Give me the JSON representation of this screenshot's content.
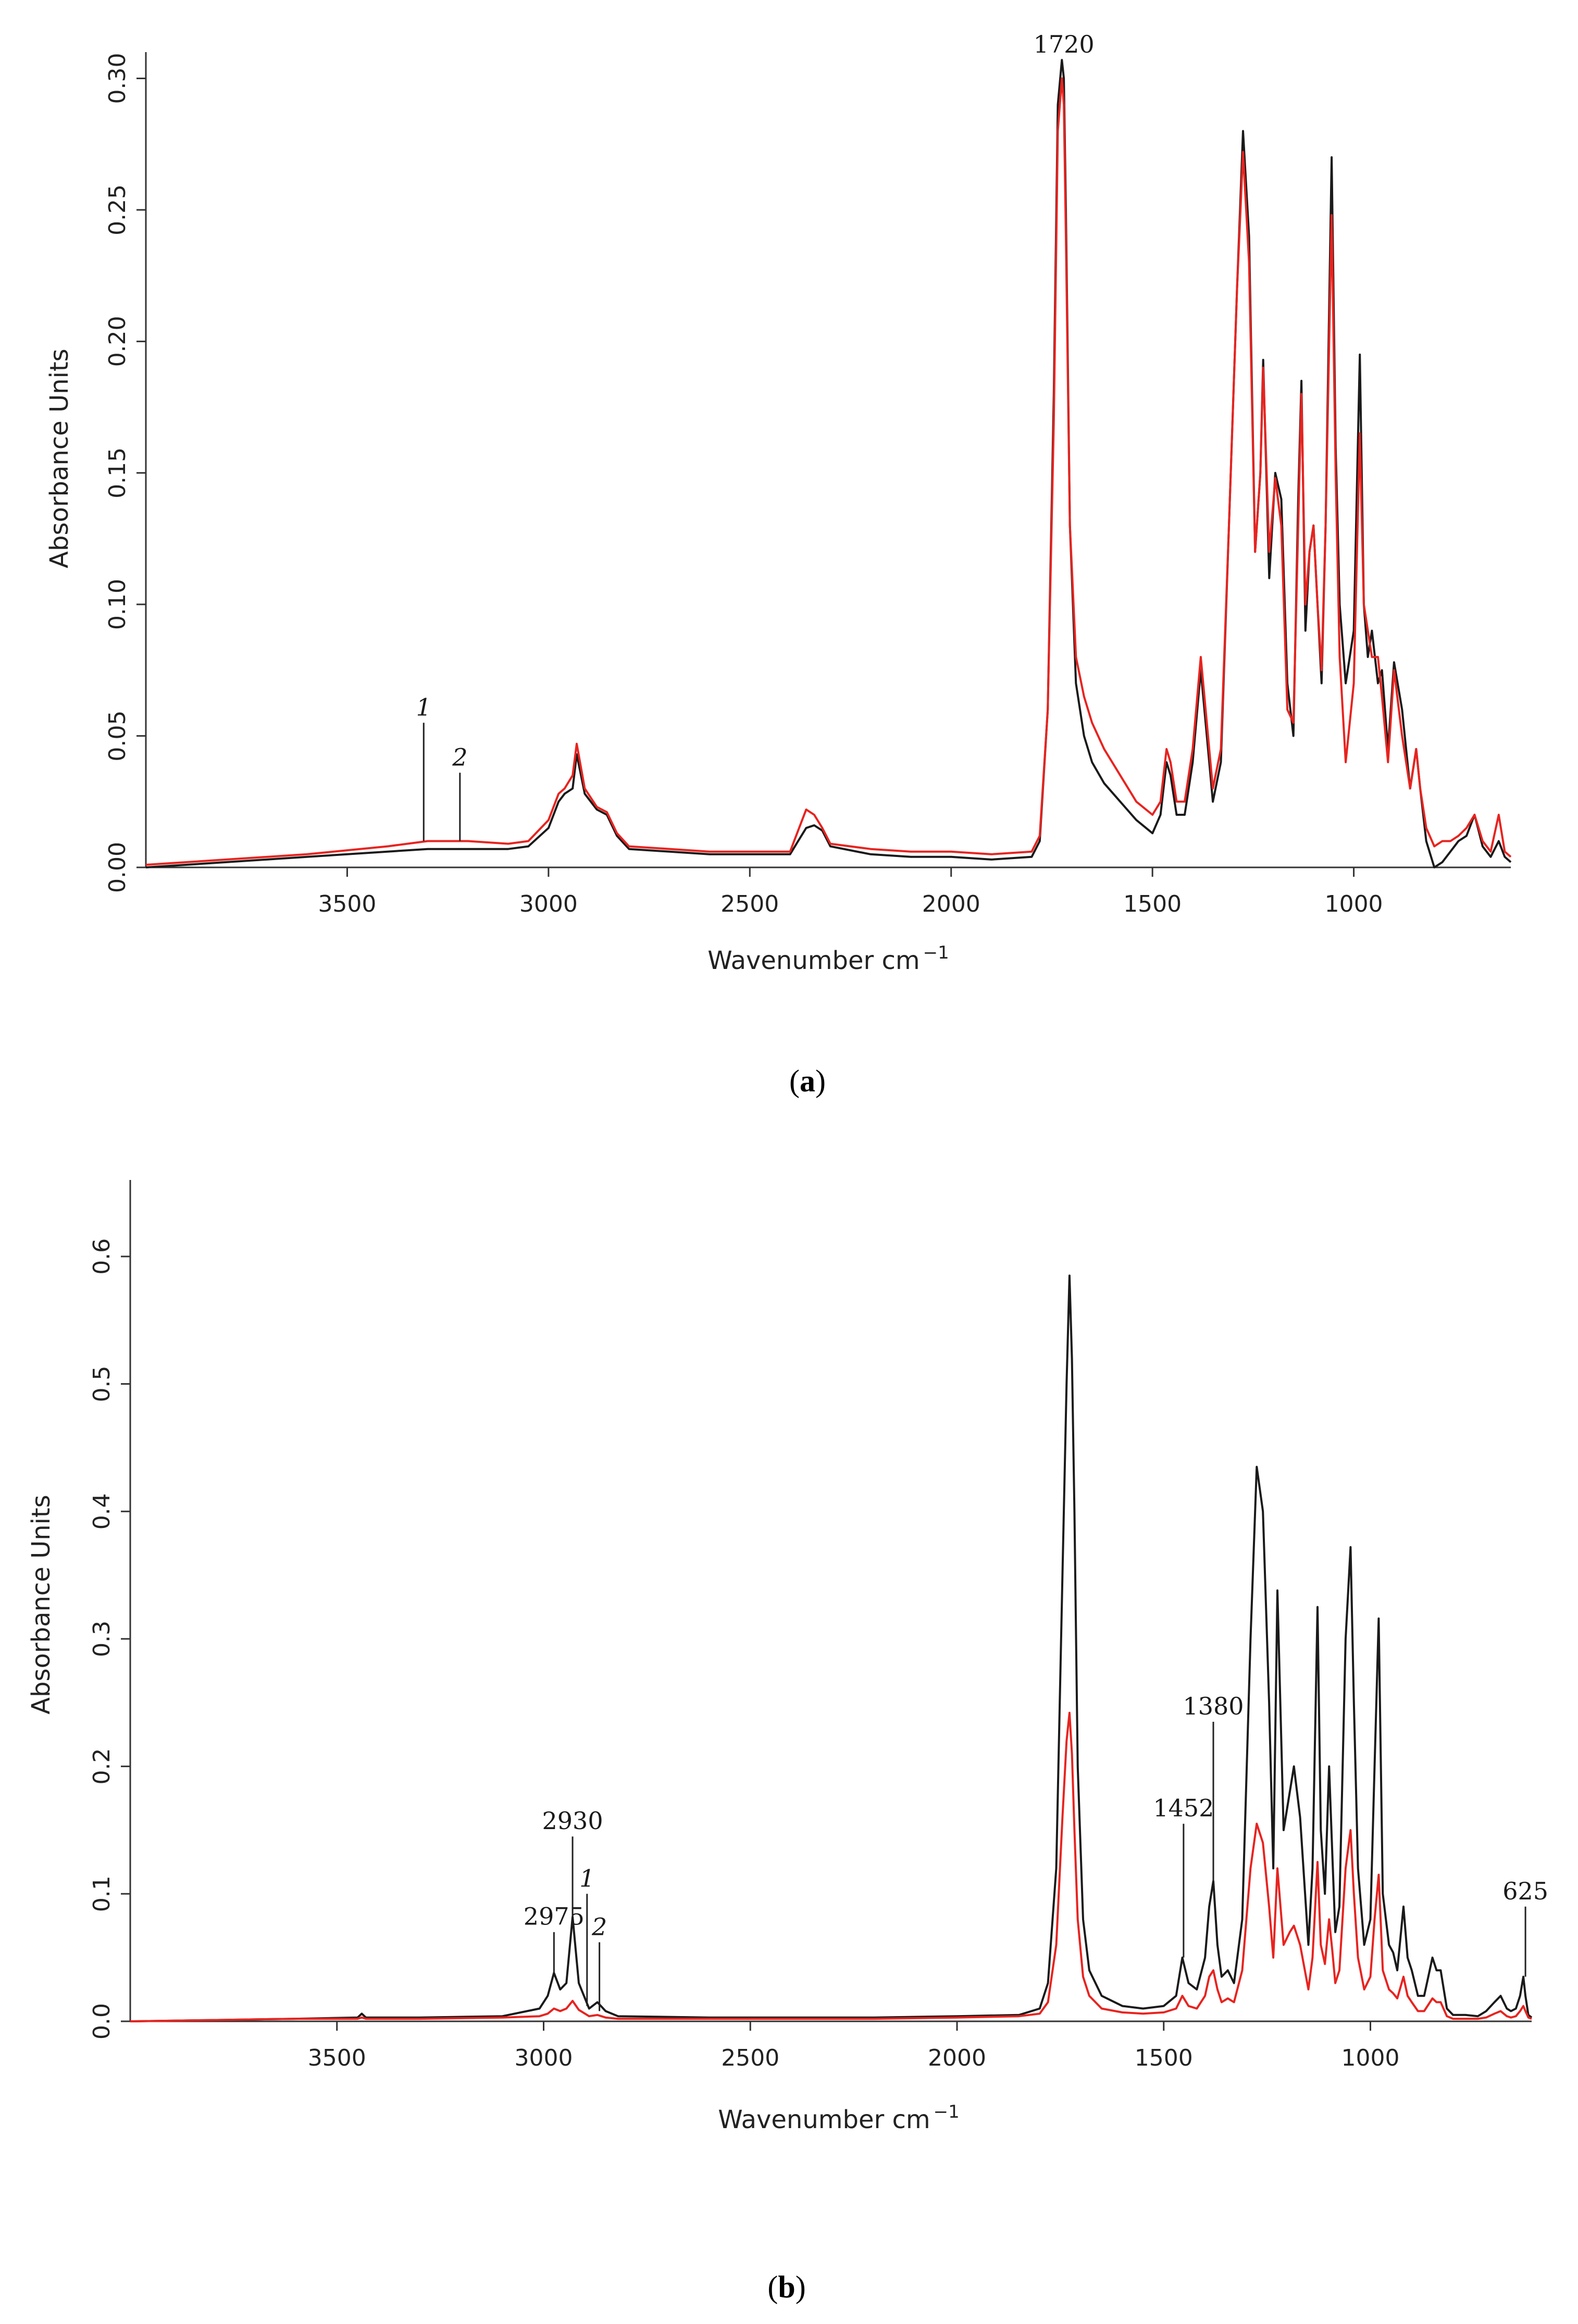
{
  "chart_data": [
    {
      "panel": "a",
      "label_open": "(",
      "label_letter": "a",
      "label_close": ")",
      "type": "line",
      "xlabel": "Wavenumber cm",
      "xlabel_sup": "−1",
      "ylabel": "Absorbance Units",
      "xlim": [
        4000,
        610
      ],
      "ylim": [
        0,
        0.31
      ],
      "x_ticks": [
        3500,
        3000,
        2500,
        2000,
        1500,
        1000
      ],
      "y_ticks": [
        0.0,
        0.05,
        0.1,
        0.15,
        0.2,
        0.25,
        0.3
      ],
      "y_tick_labels": [
        "0.00",
        "0.05",
        "0.10",
        "0.15",
        "0.20",
        "0.25",
        "0.30"
      ],
      "series": [
        {
          "name": "1",
          "color": "#1a1a1a",
          "x": [
            4000,
            3800,
            3600,
            3400,
            3300,
            3200,
            3100,
            3050,
            3000,
            2975,
            2960,
            2940,
            2930,
            2910,
            2880,
            2855,
            2830,
            2800,
            2600,
            2400,
            2380,
            2360,
            2340,
            2320,
            2300,
            2200,
            2100,
            2000,
            1900,
            1800,
            1780,
            1760,
            1745,
            1735,
            1725,
            1720,
            1715,
            1705,
            1690,
            1670,
            1650,
            1620,
            1580,
            1540,
            1500,
            1480,
            1465,
            1455,
            1440,
            1420,
            1400,
            1380,
            1365,
            1350,
            1330,
            1310,
            1290,
            1275,
            1260,
            1245,
            1232,
            1225,
            1210,
            1195,
            1180,
            1165,
            1150,
            1138,
            1130,
            1120,
            1110,
            1100,
            1090,
            1080,
            1070,
            1055,
            1045,
            1035,
            1020,
            1000,
            985,
            975,
            965,
            955,
            940,
            930,
            915,
            900,
            880,
            860,
            845,
            835,
            820,
            800,
            780,
            760,
            740,
            720,
            700,
            680,
            660,
            640,
            625,
            610
          ],
          "values": [
            0.0,
            0.002,
            0.004,
            0.006,
            0.007,
            0.007,
            0.007,
            0.008,
            0.015,
            0.025,
            0.028,
            0.03,
            0.043,
            0.028,
            0.022,
            0.02,
            0.012,
            0.007,
            0.005,
            0.005,
            0.01,
            0.015,
            0.016,
            0.014,
            0.008,
            0.005,
            0.004,
            0.004,
            0.003,
            0.004,
            0.01,
            0.06,
            0.18,
            0.29,
            0.307,
            0.3,
            0.25,
            0.13,
            0.07,
            0.05,
            0.04,
            0.032,
            0.025,
            0.018,
            0.013,
            0.02,
            0.04,
            0.035,
            0.02,
            0.02,
            0.04,
            0.075,
            0.05,
            0.025,
            0.04,
            0.13,
            0.22,
            0.28,
            0.24,
            0.12,
            0.15,
            0.193,
            0.11,
            0.15,
            0.14,
            0.07,
            0.05,
            0.14,
            0.185,
            0.09,
            0.12,
            0.13,
            0.1,
            0.07,
            0.13,
            0.27,
            0.16,
            0.1,
            0.07,
            0.09,
            0.195,
            0.1,
            0.08,
            0.09,
            0.07,
            0.075,
            0.045,
            0.078,
            0.06,
            0.03,
            0.045,
            0.03,
            0.01,
            0.0,
            0.002,
            0.006,
            0.01,
            0.012,
            0.02,
            0.008,
            0.004,
            0.01,
            0.004,
            0.002
          ]
        },
        {
          "name": "2",
          "color": "#e8231f",
          "x": [
            4000,
            3800,
            3600,
            3400,
            3300,
            3200,
            3100,
            3050,
            3000,
            2975,
            2960,
            2940,
            2930,
            2910,
            2880,
            2855,
            2830,
            2800,
            2600,
            2400,
            2380,
            2360,
            2340,
            2320,
            2300,
            2200,
            2100,
            2000,
            1900,
            1800,
            1780,
            1760,
            1745,
            1735,
            1725,
            1720,
            1715,
            1705,
            1690,
            1670,
            1650,
            1620,
            1580,
            1540,
            1500,
            1480,
            1465,
            1455,
            1440,
            1420,
            1400,
            1380,
            1365,
            1350,
            1330,
            1310,
            1290,
            1275,
            1260,
            1245,
            1232,
            1225,
            1210,
            1195,
            1180,
            1165,
            1150,
            1138,
            1130,
            1120,
            1110,
            1100,
            1090,
            1080,
            1070,
            1055,
            1045,
            1035,
            1020,
            1000,
            985,
            975,
            965,
            955,
            940,
            930,
            915,
            900,
            880,
            860,
            845,
            835,
            820,
            800,
            780,
            760,
            740,
            720,
            700,
            680,
            660,
            640,
            625,
            610
          ],
          "values": [
            0.001,
            0.003,
            0.005,
            0.008,
            0.01,
            0.01,
            0.009,
            0.01,
            0.018,
            0.028,
            0.03,
            0.035,
            0.047,
            0.03,
            0.023,
            0.021,
            0.013,
            0.008,
            0.006,
            0.006,
            0.014,
            0.022,
            0.02,
            0.015,
            0.009,
            0.007,
            0.006,
            0.006,
            0.005,
            0.006,
            0.012,
            0.06,
            0.17,
            0.28,
            0.3,
            0.29,
            0.24,
            0.13,
            0.08,
            0.065,
            0.055,
            0.045,
            0.035,
            0.025,
            0.02,
            0.025,
            0.045,
            0.04,
            0.025,
            0.025,
            0.045,
            0.08,
            0.055,
            0.03,
            0.045,
            0.13,
            0.22,
            0.272,
            0.23,
            0.12,
            0.15,
            0.19,
            0.12,
            0.148,
            0.13,
            0.06,
            0.055,
            0.13,
            0.18,
            0.1,
            0.12,
            0.13,
            0.1,
            0.075,
            0.13,
            0.248,
            0.15,
            0.08,
            0.04,
            0.07,
            0.165,
            0.1,
            0.09,
            0.08,
            0.08,
            0.065,
            0.04,
            0.075,
            0.05,
            0.03,
            0.045,
            0.03,
            0.015,
            0.008,
            0.01,
            0.01,
            0.012,
            0.015,
            0.02,
            0.01,
            0.006,
            0.02,
            0.006,
            0.004
          ]
        }
      ],
      "annotations": [
        {
          "text": "1720",
          "x": 1720,
          "y_top": 0.307,
          "style": "normal",
          "marker": "label"
        },
        {
          "text": "1",
          "x": 3310,
          "y_top": 0.055,
          "y_bottom": 0.01,
          "style": "italic",
          "marker": "line"
        },
        {
          "text": "2",
          "x": 3220,
          "y_top": 0.036,
          "y_bottom": 0.01,
          "style": "italic",
          "marker": "line"
        }
      ]
    },
    {
      "panel": "b",
      "label_open": "(",
      "label_letter": "b",
      "label_close": ")",
      "type": "line",
      "xlabel": "Wavenumber cm",
      "xlabel_sup": "−1",
      "ylabel": "Absorbance Units",
      "xlim": [
        4000,
        610
      ],
      "ylim": [
        0,
        0.66
      ],
      "x_ticks": [
        3500,
        3000,
        2500,
        2000,
        1500,
        1000
      ],
      "y_ticks": [
        0.0,
        0.1,
        0.2,
        0.3,
        0.4,
        0.5,
        0.6
      ],
      "y_tick_labels": [
        "0.0",
        "0.1",
        "0.2",
        "0.3",
        "0.4",
        "0.5",
        "0.6"
      ],
      "series": [
        {
          "name": "1",
          "color": "#1a1a1a",
          "x": [
            4000,
            3800,
            3600,
            3450,
            3440,
            3430,
            3300,
            3100,
            3010,
            2990,
            2975,
            2960,
            2945,
            2930,
            2915,
            2890,
            2870,
            2850,
            2820,
            2600,
            2400,
            2200,
            2000,
            1850,
            1800,
            1780,
            1760,
            1745,
            1735,
            1728,
            1722,
            1716,
            1708,
            1695,
            1680,
            1650,
            1600,
            1550,
            1500,
            1470,
            1455,
            1440,
            1420,
            1400,
            1390,
            1380,
            1370,
            1360,
            1345,
            1330,
            1310,
            1290,
            1275,
            1260,
            1245,
            1235,
            1225,
            1210,
            1195,
            1185,
            1170,
            1150,
            1140,
            1128,
            1120,
            1110,
            1100,
            1092,
            1085,
            1075,
            1060,
            1048,
            1040,
            1030,
            1015,
            1000,
            990,
            980,
            970,
            955,
            945,
            935,
            920,
            910,
            900,
            885,
            870,
            850,
            840,
            830,
            815,
            800,
            770,
            740,
            720,
            700,
            685,
            670,
            660,
            648,
            638,
            630,
            625,
            618,
            610
          ],
          "values": [
            0.0,
            0.001,
            0.002,
            0.003,
            0.006,
            0.003,
            0.003,
            0.004,
            0.01,
            0.02,
            0.038,
            0.025,
            0.03,
            0.082,
            0.03,
            0.01,
            0.015,
            0.008,
            0.004,
            0.003,
            0.003,
            0.003,
            0.004,
            0.005,
            0.01,
            0.03,
            0.12,
            0.35,
            0.5,
            0.585,
            0.52,
            0.4,
            0.2,
            0.08,
            0.04,
            0.02,
            0.012,
            0.01,
            0.012,
            0.02,
            0.05,
            0.03,
            0.025,
            0.05,
            0.09,
            0.11,
            0.06,
            0.035,
            0.04,
            0.03,
            0.08,
            0.3,
            0.435,
            0.4,
            0.25,
            0.12,
            0.338,
            0.15,
            0.18,
            0.2,
            0.16,
            0.06,
            0.12,
            0.325,
            0.15,
            0.1,
            0.2,
            0.13,
            0.07,
            0.09,
            0.3,
            0.372,
            0.25,
            0.12,
            0.06,
            0.08,
            0.2,
            0.316,
            0.1,
            0.06,
            0.054,
            0.04,
            0.09,
            0.05,
            0.04,
            0.02,
            0.02,
            0.05,
            0.04,
            0.04,
            0.01,
            0.005,
            0.005,
            0.004,
            0.008,
            0.015,
            0.02,
            0.01,
            0.008,
            0.01,
            0.02,
            0.035,
            0.02,
            0.005,
            0.003
          ]
        },
        {
          "name": "2",
          "color": "#e8231f",
          "x": [
            4000,
            3800,
            3600,
            3450,
            3440,
            3430,
            3300,
            3100,
            3010,
            2990,
            2975,
            2960,
            2945,
            2930,
            2915,
            2890,
            2870,
            2850,
            2820,
            2600,
            2400,
            2200,
            2000,
            1850,
            1800,
            1780,
            1760,
            1745,
            1735,
            1728,
            1722,
            1716,
            1708,
            1695,
            1680,
            1650,
            1600,
            1550,
            1500,
            1470,
            1455,
            1440,
            1420,
            1400,
            1390,
            1380,
            1370,
            1360,
            1345,
            1330,
            1310,
            1290,
            1275,
            1260,
            1245,
            1235,
            1225,
            1210,
            1195,
            1185,
            1170,
            1150,
            1140,
            1128,
            1120,
            1110,
            1100,
            1092,
            1085,
            1075,
            1060,
            1048,
            1040,
            1030,
            1015,
            1000,
            990,
            980,
            970,
            955,
            945,
            935,
            920,
            910,
            900,
            885,
            870,
            850,
            840,
            830,
            815,
            800,
            770,
            740,
            720,
            700,
            685,
            670,
            660,
            648,
            638,
            630,
            625,
            618,
            610
          ],
          "values": [
            0.0,
            0.001,
            0.002,
            0.002,
            0.003,
            0.002,
            0.002,
            0.003,
            0.004,
            0.006,
            0.01,
            0.008,
            0.01,
            0.016,
            0.009,
            0.004,
            0.005,
            0.003,
            0.002,
            0.002,
            0.002,
            0.002,
            0.003,
            0.004,
            0.006,
            0.015,
            0.06,
            0.16,
            0.22,
            0.242,
            0.21,
            0.15,
            0.08,
            0.035,
            0.02,
            0.01,
            0.007,
            0.006,
            0.007,
            0.01,
            0.02,
            0.012,
            0.01,
            0.02,
            0.035,
            0.04,
            0.025,
            0.015,
            0.018,
            0.015,
            0.04,
            0.12,
            0.155,
            0.14,
            0.09,
            0.05,
            0.12,
            0.06,
            0.07,
            0.075,
            0.06,
            0.025,
            0.05,
            0.125,
            0.06,
            0.045,
            0.08,
            0.055,
            0.03,
            0.04,
            0.12,
            0.15,
            0.1,
            0.05,
            0.025,
            0.035,
            0.08,
            0.115,
            0.04,
            0.025,
            0.022,
            0.018,
            0.035,
            0.02,
            0.015,
            0.008,
            0.008,
            0.018,
            0.015,
            0.015,
            0.004,
            0.002,
            0.002,
            0.002,
            0.003,
            0.006,
            0.008,
            0.004,
            0.003,
            0.004,
            0.008,
            0.012,
            0.008,
            0.003,
            0.002
          ]
        }
      ],
      "annotations": [
        {
          "text": "2930",
          "x": 2930,
          "y_top": 0.145,
          "y_bottom": 0.082,
          "style": "normal",
          "marker": "line"
        },
        {
          "text": "2975",
          "x": 2975,
          "y_top": 0.07,
          "y_bottom": 0.038,
          "style": "normal",
          "marker": "line"
        },
        {
          "text": "1",
          "x": 2895,
          "y_top": 0.1,
          "y_bottom": 0.012,
          "style": "italic",
          "marker": "line"
        },
        {
          "text": "2",
          "x": 2865,
          "y_top": 0.062,
          "y_bottom": 0.008,
          "style": "italic",
          "marker": "line"
        },
        {
          "text": "1452",
          "x": 1452,
          "y_top": 0.155,
          "y_bottom": 0.05,
          "style": "normal",
          "marker": "line"
        },
        {
          "text": "1380",
          "x": 1380,
          "y_top": 0.235,
          "y_bottom": 0.11,
          "style": "normal",
          "marker": "line"
        },
        {
          "text": "625",
          "x": 625,
          "y_top": 0.09,
          "y_bottom": 0.035,
          "style": "normal",
          "marker": "line"
        }
      ]
    }
  ]
}
